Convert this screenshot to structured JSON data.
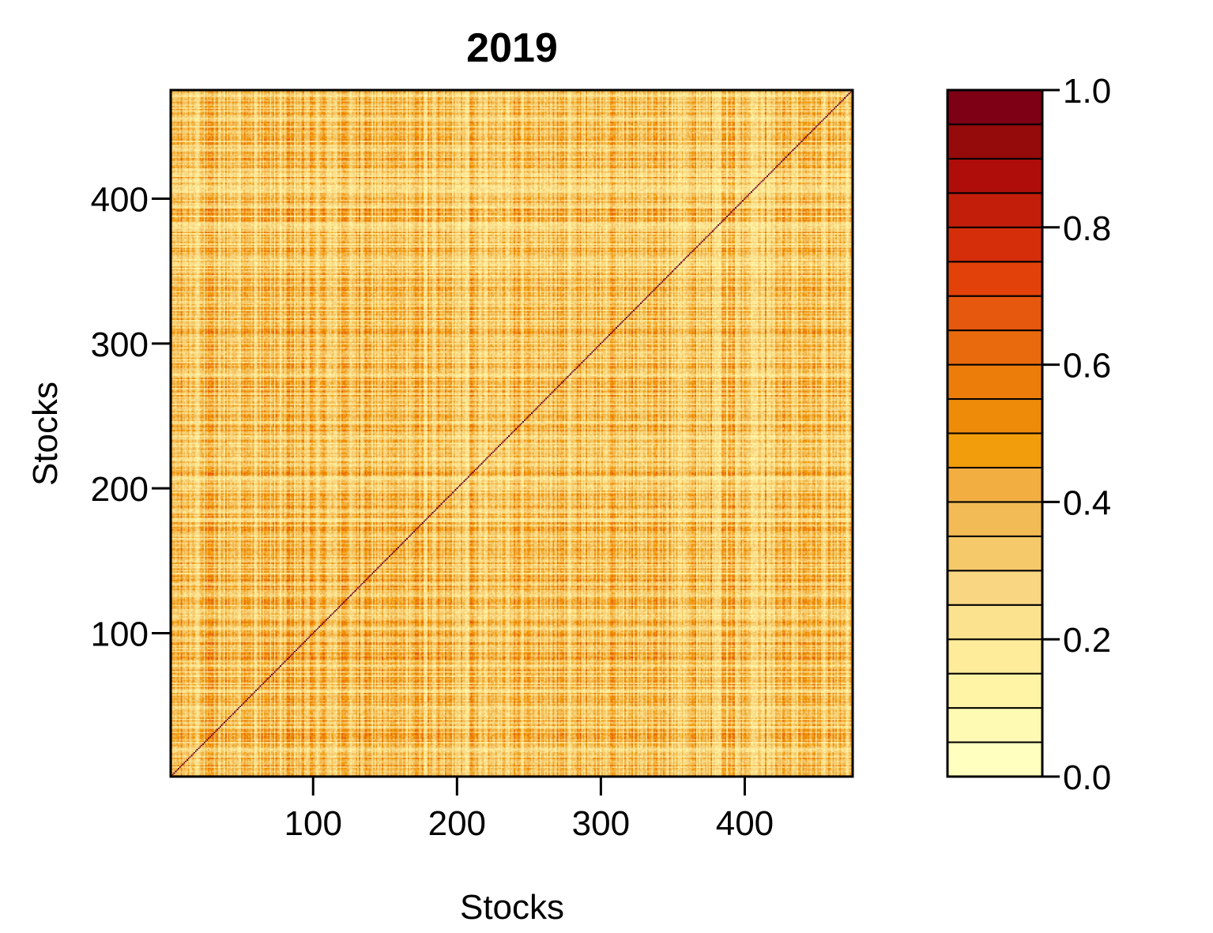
{
  "chart_data": {
    "type": "heatmap",
    "title": "2019",
    "xlabel": "Stocks",
    "ylabel": "Stocks",
    "n_stocks": 475,
    "xlim": [
      1,
      475
    ],
    "ylim": [
      1,
      475
    ],
    "x_ticks": [
      100,
      200,
      300,
      400
    ],
    "x_tick_labels": [
      "100",
      "200",
      "300",
      "400"
    ],
    "y_ticks": [
      100,
      200,
      300,
      400
    ],
    "y_tick_labels": [
      "100",
      "200",
      "300",
      "400"
    ],
    "diagonal_value": 1.0,
    "typical_offdiagonal_range": [
      0.1,
      0.45
    ],
    "colorbar": {
      "range": [
        0.0,
        1.0
      ],
      "tick_values": [
        0.0,
        0.2,
        0.4,
        0.6,
        0.8,
        1.0
      ],
      "tick_labels": [
        "0.0",
        "0.2",
        "0.4",
        "0.6",
        "0.8",
        "1.0"
      ],
      "levels": 20,
      "colors": [
        "#FFFFBF",
        "#FFFAB3",
        "#FFF4A6",
        "#FEEC9A",
        "#FBE28E",
        "#F8D682",
        "#F5C969",
        "#F3BB55",
        "#F2AE41",
        "#F29D0B",
        "#EE8C0A",
        "#EC7D0B",
        "#E86A0D",
        "#E5580E",
        "#E2420A",
        "#D42E0A",
        "#C21E0A",
        "#AE0D0A",
        "#950A0A",
        "#7E0015",
        "#6B0020"
      ]
    }
  }
}
